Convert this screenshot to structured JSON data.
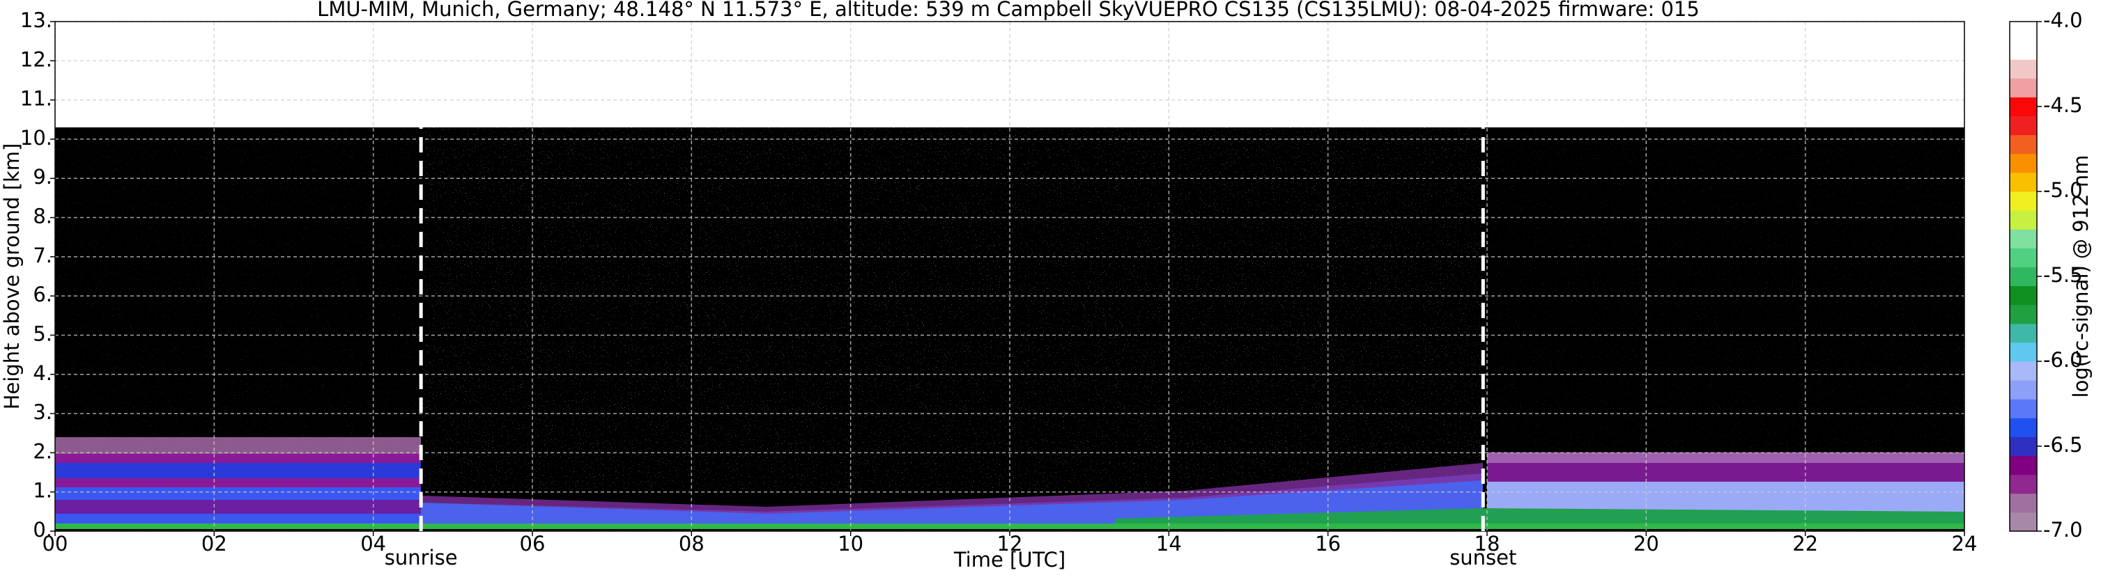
{
  "chart_data": {
    "type": "heatmap",
    "title": "LMU-MIM, Munich, Germany; 48.148° N 11.573° E, altitude: 539 m    Campbell SkyVUEPRO CS135 (CS135LMU): 08-04-2025    firmware: 015",
    "x_label": "Time [UTC]",
    "y_label": "Height above ground [km]",
    "xlim": [
      0,
      24
    ],
    "xticks": [
      {
        "value": 0,
        "label": "00"
      },
      {
        "value": 2,
        "label": "02"
      },
      {
        "value": 4,
        "label": "04"
      },
      {
        "value": 6,
        "label": "06"
      },
      {
        "value": 8,
        "label": "08"
      },
      10,
      12,
      14,
      16,
      18,
      20,
      22,
      24
    ],
    "ylim": [
      0,
      13
    ],
    "yticks": [
      {
        "value": 0,
        "label": "0."
      },
      {
        "value": 1,
        "label": "1."
      },
      {
        "value": 2,
        "label": "2."
      },
      {
        "value": 3,
        "label": "3."
      },
      {
        "value": 4,
        "label": "4."
      },
      {
        "value": 5,
        "label": "5."
      },
      {
        "value": 6,
        "label": "6."
      },
      {
        "value": 7,
        "label": "7."
      },
      {
        "value": 8,
        "label": "8."
      },
      {
        "value": 9,
        "label": "9."
      },
      {
        "value": 10,
        "label": "10."
      },
      {
        "value": 11,
        "label": "11."
      },
      {
        "value": 12,
        "label": "12."
      },
      {
        "value": 13,
        "label": "13."
      }
    ],
    "grid": true,
    "annotations": [
      {
        "label": "sunrise",
        "x": 4.6
      },
      {
        "label": "sunset",
        "x": 17.95
      }
    ],
    "colorbar": {
      "label": "log(rc-signal) @ 912 nm",
      "lim": [
        -7,
        -4
      ],
      "ticks": [
        {
          "value": -7,
          "label": "-7.0"
        },
        -6.5,
        {
          "value": -6,
          "label": "-6.0"
        },
        -5.5,
        {
          "value": -5,
          "label": "-5.0"
        },
        -4.5,
        {
          "value": -4,
          "label": "-4.0"
        }
      ],
      "colors": [
        "#a888a8",
        "#a070a0",
        "#902890",
        "#800080",
        "#3030c0",
        "#2050f0",
        "#5a78f8",
        "#8ca0f8",
        "#a8b8f8",
        "#60c8f0",
        "#40b8a8",
        "#20a040",
        "#109020",
        "#30b860",
        "#50d080",
        "#80e0a0",
        "#c8f040",
        "#f0f020",
        "#f8c000",
        "#f89000",
        "#f06020",
        "#f02020",
        "#f80808",
        "#f0a0a0",
        "#f0c8c8",
        "#ffffff",
        "#ffffff"
      ]
    }
  }
}
